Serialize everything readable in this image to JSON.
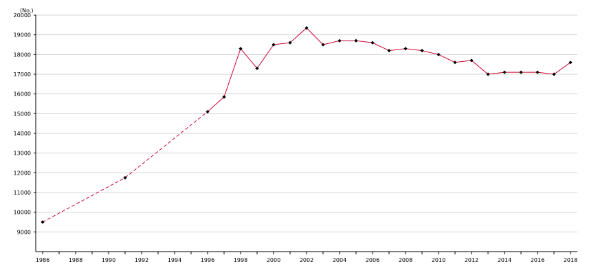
{
  "chart_data": {
    "type": "line",
    "title": "",
    "xlabel": "",
    "ylabel": "",
    "unit_label": "(No.)",
    "xlim": [
      1986,
      2018
    ],
    "ylim": [
      8000,
      20000
    ],
    "x_ticks": [
      1986,
      1988,
      1990,
      1992,
      1994,
      1996,
      1998,
      2000,
      2002,
      2004,
      2006,
      2008,
      2010,
      2012,
      2014,
      2016,
      2018
    ],
    "x_tick_labels": [
      "1986",
      "1988",
      "1990",
      "1992",
      "1994",
      "1996",
      "1998",
      "2000",
      "2002",
      "2004",
      "2006",
      "2008",
      "2010",
      "2012",
      "2014",
      "2016",
      "2018"
    ],
    "y_ticks": [
      9000,
      10000,
      11000,
      12000,
      13000,
      14000,
      15000,
      16000,
      17000,
      18000,
      19000,
      20000
    ],
    "y_tick_labels": [
      "9000",
      "10000",
      "11000",
      "12000",
      "13000",
      "14000",
      "15000",
      "16000",
      "17000",
      "18000",
      "19000",
      "20000"
    ],
    "grid": "horizontal",
    "legend": "none",
    "line_color": "#cc0033",
    "marker_color": "#000000",
    "grid_color": "#d3d3d3",
    "axis_color": "#000000",
    "series": [
      {
        "x": [
          1986,
          1991,
          1996,
          1997,
          1998,
          1999,
          2000,
          2001,
          2002,
          2003,
          2004,
          2005,
          2006,
          2007,
          2008,
          2009,
          2010,
          2011,
          2012,
          2013,
          2014,
          2015,
          2016,
          2017,
          2018
        ],
        "values": [
          9500,
          11750,
          15100,
          15850,
          18300,
          17300,
          18500,
          18600,
          19350,
          18500,
          18700,
          18700,
          18600,
          18200,
          18300,
          18200,
          18000,
          17600,
          17700,
          17000,
          17100,
          17100,
          17100,
          17000,
          17600
        ],
        "dashed_through_x": 1996
      }
    ]
  }
}
